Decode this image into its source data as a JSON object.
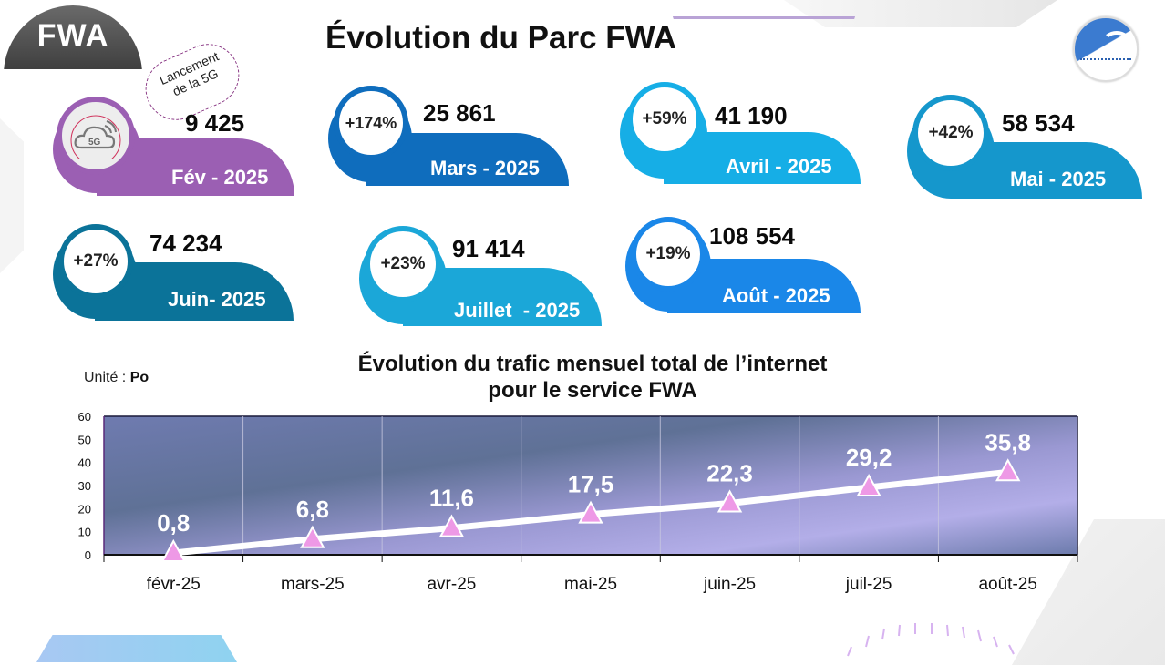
{
  "badge": {
    "label": "FWA"
  },
  "page_title": "Évolution du Parc FWA",
  "logo": {
    "icon": "regulator-logo-icon"
  },
  "callout": {
    "text_line1": "Lancement",
    "text_line2": "de la 5G"
  },
  "cards": [
    {
      "month": "Fév - 2025",
      "value": "9 425",
      "growth": null,
      "icon": "5g-cloud-icon",
      "color": "#9b5fb3"
    },
    {
      "month": "Mars - 2025",
      "value": "25 861",
      "growth": "+174%",
      "color": "#0f6dbd"
    },
    {
      "month": "Avril - 2025",
      "value": "41 190",
      "growth": "+59%",
      "color": "#16aee6"
    },
    {
      "month": "Mai - 2025",
      "value": "58 534",
      "growth": "+42%",
      "color": "#1597cc"
    },
    {
      "month": "Juin- 2025",
      "value": "74 234",
      "growth": "+27%",
      "color": "#0b7399"
    },
    {
      "month": "Juillet  - 2025",
      "value": "91 414",
      "growth": "+23%",
      "color": "#1ba7d8"
    },
    {
      "month": "Août - 2025",
      "value": "108 554",
      "growth": "+19%",
      "color": "#1a87e8"
    }
  ],
  "unit": {
    "label": "Unité :",
    "value": "Po"
  },
  "chart_data": {
    "type": "line",
    "title": "Évolution du trafic mensuel total de l’internet pour le service FWA",
    "title_line1": "Évolution du trafic mensuel total de l’internet",
    "title_line2": "pour le service FWA",
    "categories": [
      "févr-25",
      "mars-25",
      "avr-25",
      "mai-25",
      "juin-25",
      "juil-25",
      "août-25"
    ],
    "values": [
      0.8,
      6.8,
      11.6,
      17.5,
      22.3,
      29.2,
      35.8
    ],
    "data_labels": [
      "0,8",
      "6,8",
      "11,6",
      "17,5",
      "22,3",
      "29,2",
      "35,8"
    ],
    "xlabel": "",
    "ylabel": "",
    "unit": "Po",
    "ylim": [
      0,
      60
    ],
    "yticks": [
      0,
      10,
      20,
      30,
      40,
      50,
      60
    ],
    "grid": "vertical",
    "legend": "none",
    "marker": "triangle",
    "line_color": "#ffffff",
    "marker_color": "#ee99e6"
  }
}
